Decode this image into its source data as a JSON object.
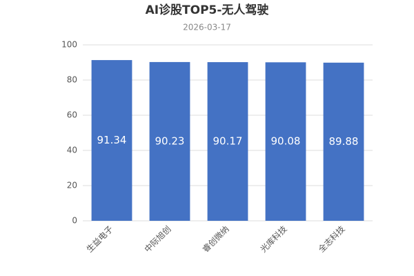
{
  "chart_data": {
    "type": "bar",
    "title": "AI诊股TOP5-无人驾驶",
    "subtitle": "2026-03-17",
    "categories": [
      "生益电子",
      "中际旭创",
      "睿创微纳",
      "光库科技",
      "全志科技"
    ],
    "values": [
      91.34,
      90.23,
      90.17,
      90.08,
      89.88
    ],
    "color": "#4472c4",
    "ylim": [
      0,
      100
    ],
    "yticks": [
      0,
      20,
      40,
      60,
      80,
      100
    ],
    "grid": true
  }
}
